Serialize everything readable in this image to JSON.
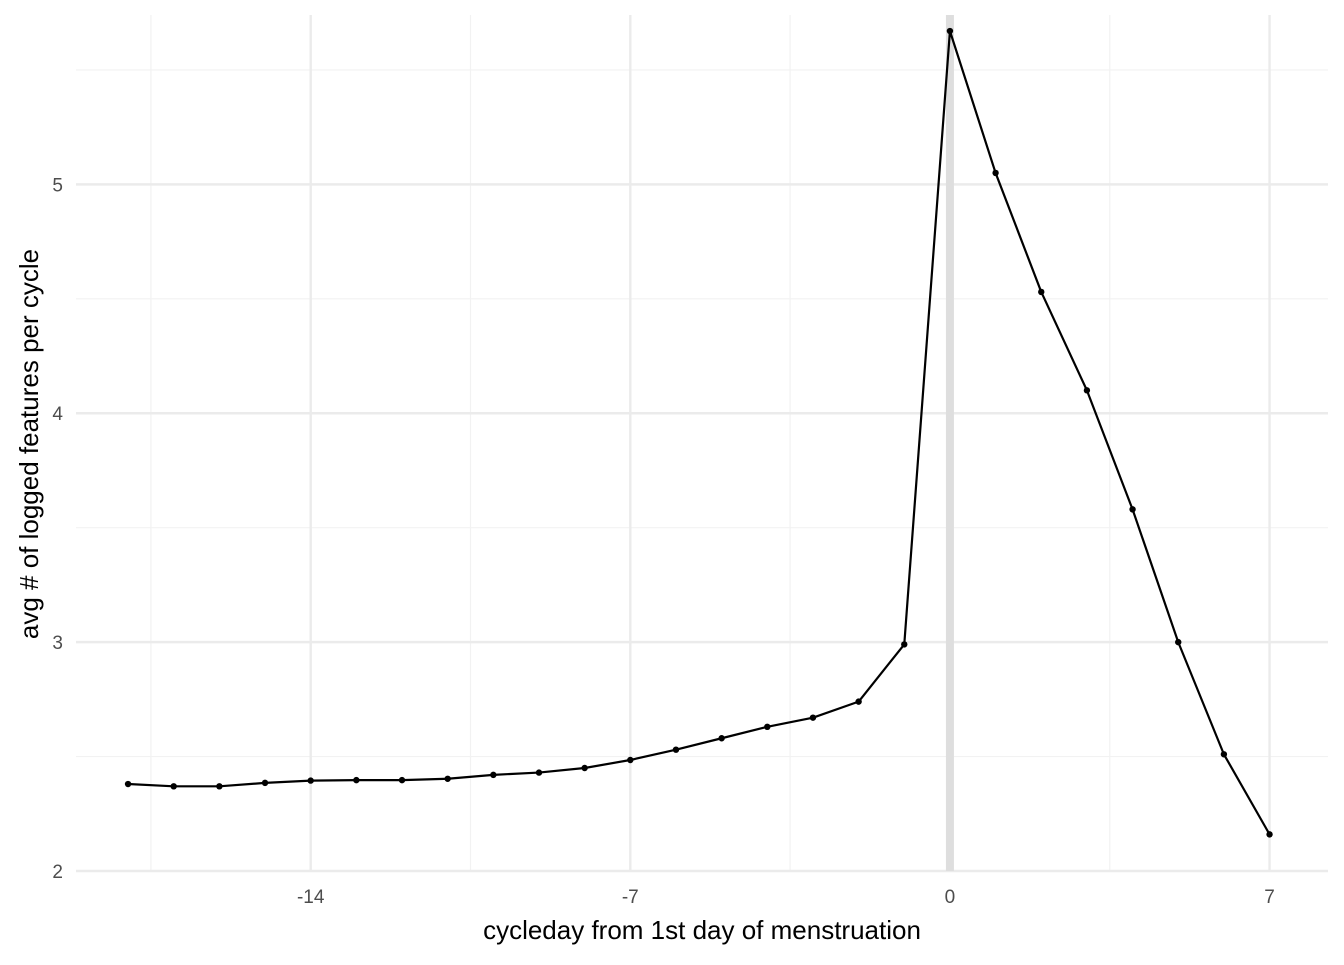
{
  "chart_data": {
    "type": "line",
    "title": "",
    "xlabel": "cycleday from 1st day of menstruation",
    "ylabel": "avg # of logged features per cycle",
    "x": [
      -18,
      -17,
      -16,
      -15,
      -14,
      -13,
      -12,
      -11,
      -10,
      -9,
      -8,
      -7,
      -6,
      -5,
      -4,
      -3,
      -2,
      -1,
      0,
      1,
      2,
      3,
      4,
      5,
      6,
      7
    ],
    "series": [
      {
        "values": [
          2.38,
          2.37,
          2.37,
          2.385,
          2.395,
          2.397,
          2.397,
          2.403,
          2.42,
          2.43,
          2.45,
          2.485,
          2.53,
          2.58,
          2.63,
          2.67,
          2.74,
          2.99,
          5.67,
          5.05,
          4.53,
          4.1,
          3.58,
          3.0,
          2.51,
          2.16
        ]
      }
    ],
    "xlim": [
      -19.14,
      8.28
    ],
    "ylim": [
      2.0,
      5.74
    ],
    "x_ticks": [
      -14,
      -7,
      0,
      7
    ],
    "x_tick_labels": [
      "-14",
      "-7",
      "0",
      "7"
    ],
    "x_minor": [
      -17.5,
      -10.5,
      -3.5,
      3.5
    ],
    "y_ticks": [
      2,
      3,
      4,
      5
    ],
    "y_tick_labels": [
      "2",
      "3",
      "4",
      "5"
    ],
    "y_minor": [
      2.5,
      3.5,
      4.5,
      5.5
    ],
    "reference_line_x": 0,
    "grid": true,
    "legend": "none",
    "colors": {
      "line": "#000000",
      "grid_major": "#ebebeb",
      "grid_minor": "#f2f2f2",
      "reference_line": "#dedede",
      "tick_text": "#4d4d4d"
    }
  }
}
